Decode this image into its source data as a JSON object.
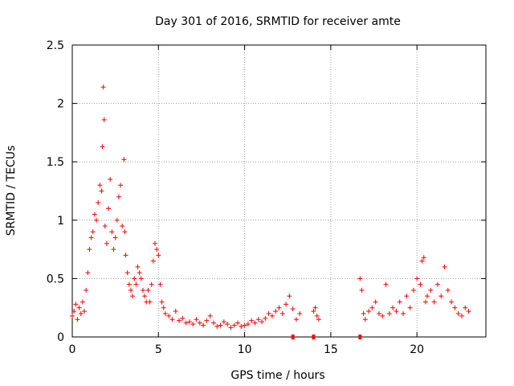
{
  "chart_data": {
    "type": "scatter",
    "title": "Day 301 of 2016, SRMTID for receiver amte",
    "xlabel": "GPS time / hours",
    "ylabel": "SRMTID / TECUs",
    "xlim": [
      0,
      24
    ],
    "ylim": [
      0,
      2.5
    ],
    "grid": true,
    "marker": "+",
    "marker_color": "#ff0000",
    "x_ticks": [
      0,
      5,
      10,
      15,
      20
    ],
    "x_tick_labels": [
      "0",
      "5",
      "10",
      "15",
      "20"
    ],
    "y_ticks": [
      0,
      0.5,
      1,
      1.5,
      2,
      2.5
    ],
    "y_tick_labels": [
      "0",
      "0.5",
      "1",
      "1.5",
      "2",
      "2.5"
    ],
    "series": [
      {
        "name": "SRMTID",
        "x": [
          0.0,
          0.1,
          0.2,
          0.3,
          0.4,
          0.5,
          0.6,
          0.7,
          0.8,
          0.9,
          1.0,
          1.1,
          1.2,
          1.3,
          1.4,
          1.5,
          1.6,
          1.7,
          1.75,
          1.8,
          1.85,
          1.9,
          2.0,
          2.1,
          2.2,
          2.3,
          2.4,
          2.5,
          2.6,
          2.7,
          2.8,
          2.9,
          3.0,
          3.05,
          3.1,
          3.2,
          3.3,
          3.4,
          3.5,
          3.6,
          3.7,
          3.8,
          3.9,
          4.0,
          4.1,
          4.2,
          4.3,
          4.4,
          4.5,
          4.6,
          4.7,
          4.8,
          4.9,
          5.0,
          5.1,
          5.2,
          5.3,
          5.4,
          5.6,
          5.8,
          6.0,
          6.2,
          6.4,
          6.6,
          6.8,
          7.0,
          7.2,
          7.4,
          7.6,
          7.8,
          8.0,
          8.2,
          8.4,
          8.6,
          8.8,
          9.0,
          9.2,
          9.4,
          9.6,
          9.8,
          10.0,
          10.2,
          10.4,
          10.6,
          10.8,
          11.0,
          11.2,
          11.4,
          11.6,
          11.8,
          12.0,
          12.2,
          12.4,
          12.6,
          12.8,
          13.0,
          13.2,
          14.0,
          14.1,
          14.2,
          14.3,
          16.7,
          16.8,
          16.9,
          17.0,
          17.2,
          17.4,
          17.6,
          17.8,
          18.0,
          18.2,
          18.4,
          18.6,
          18.8,
          19.0,
          19.2,
          19.4,
          19.6,
          19.8,
          20.0,
          20.2,
          20.3,
          20.4,
          20.5,
          20.6,
          20.8,
          21.0,
          21.2,
          21.4,
          21.6,
          21.8,
          22.0,
          22.2,
          22.4,
          22.6,
          22.8,
          23.0
        ],
        "y": [
          0.18,
          0.22,
          0.28,
          0.15,
          0.25,
          0.2,
          0.3,
          0.22,
          0.4,
          0.55,
          0.75,
          0.85,
          0.9,
          1.05,
          1.0,
          1.15,
          1.3,
          1.25,
          1.63,
          2.14,
          1.86,
          0.95,
          0.8,
          1.1,
          1.35,
          0.9,
          0.75,
          0.85,
          1.0,
          1.2,
          1.3,
          0.95,
          1.52,
          0.9,
          0.7,
          0.55,
          0.45,
          0.4,
          0.35,
          0.5,
          0.45,
          0.6,
          0.55,
          0.5,
          0.4,
          0.35,
          0.3,
          0.4,
          0.3,
          0.45,
          0.65,
          0.8,
          0.75,
          0.7,
          0.45,
          0.3,
          0.25,
          0.2,
          0.18,
          0.15,
          0.22,
          0.14,
          0.16,
          0.12,
          0.13,
          0.11,
          0.15,
          0.12,
          0.1,
          0.14,
          0.18,
          0.12,
          0.09,
          0.1,
          0.13,
          0.11,
          0.08,
          0.1,
          0.12,
          0.09,
          0.1,
          0.11,
          0.14,
          0.12,
          0.15,
          0.13,
          0.16,
          0.2,
          0.18,
          0.22,
          0.25,
          0.2,
          0.28,
          0.35,
          0.24,
          0.15,
          0.2,
          0.22,
          0.25,
          0.18,
          0.15,
          0.5,
          0.4,
          0.2,
          0.15,
          0.22,
          0.25,
          0.3,
          0.2,
          0.18,
          0.45,
          0.2,
          0.25,
          0.22,
          0.3,
          0.2,
          0.35,
          0.25,
          0.4,
          0.5,
          0.45,
          0.65,
          0.68,
          0.3,
          0.35,
          0.4,
          0.3,
          0.45,
          0.35,
          0.6,
          0.4,
          0.3,
          0.25,
          0.2,
          0.18,
          0.25,
          0.22
        ]
      }
    ],
    "zero_points_x": [
      12.8,
      14.0,
      16.7
    ]
  }
}
